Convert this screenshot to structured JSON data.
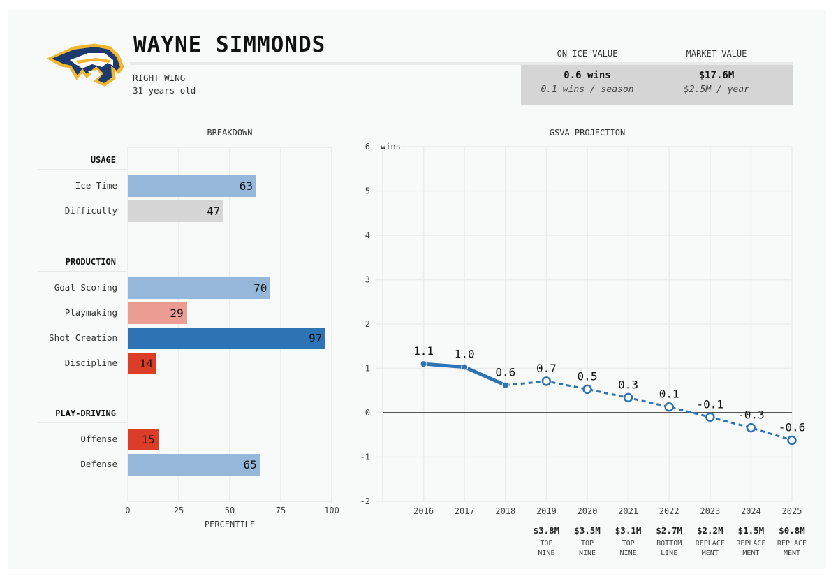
{
  "header": {
    "team_logo": "predators-sabertooth-logo",
    "player_name": "WAYNE SIMMONDS",
    "position": "RIGHT WING",
    "age": "31 years old"
  },
  "values": {
    "on_ice": {
      "label": "ON-ICE VALUE",
      "main": "0.6 wins",
      "sub": "0.1 wins / season"
    },
    "market": {
      "label": "MARKET VALUE",
      "main": "$17.6M",
      "sub": "$2.5M / year"
    }
  },
  "colors": {
    "light_blue": "#95b7da",
    "gray": "#d6d6d6",
    "dark_blue": "#2e74b5",
    "light_red": "#eb9d94",
    "red": "#dc3d27",
    "line_blue": "#2e74b5"
  },
  "chart_data": [
    {
      "type": "bar",
      "title": "BREAKDOWN",
      "xlabel": "PERCENTILE",
      "xlim": [
        0,
        100
      ],
      "xticks": [
        "0",
        "25",
        "50",
        "75",
        "100"
      ],
      "groups": [
        {
          "name": "USAGE",
          "items": [
            {
              "label": "Ice-Time",
              "value": 63,
              "color": "light_blue"
            },
            {
              "label": "Difficulty",
              "value": 47,
              "color": "gray"
            }
          ]
        },
        {
          "name": "PRODUCTION",
          "items": [
            {
              "label": "Goal Scoring",
              "value": 70,
              "color": "light_blue"
            },
            {
              "label": "Playmaking",
              "value": 29,
              "color": "light_red"
            },
            {
              "label": "Shot Creation",
              "value": 97,
              "color": "dark_blue"
            },
            {
              "label": "Discipline",
              "value": 14,
              "color": "red"
            }
          ]
        },
        {
          "name": "PLAY-DRIVING",
          "items": [
            {
              "label": "Offense",
              "value": 15,
              "color": "red"
            },
            {
              "label": "Defense",
              "value": 65,
              "color": "light_blue"
            }
          ]
        }
      ],
      "grid": true
    },
    {
      "type": "line",
      "title": "GSVA PROJECTION",
      "ylabel": "wins",
      "ylim": [
        -2,
        6
      ],
      "yticks": [
        "6",
        "5",
        "4",
        "3",
        "2",
        "1",
        "0",
        "-1",
        "-2"
      ],
      "x": [
        "2016",
        "2017",
        "2018",
        "2019",
        "2020",
        "2021",
        "2022",
        "2023",
        "2024",
        "2025"
      ],
      "values": [
        1.1,
        1.03,
        0.62,
        0.71,
        0.53,
        0.34,
        0.13,
        -0.1,
        -0.34,
        -0.62
      ],
      "labels": [
        "1.1",
        "1.0",
        "0.6",
        "0.7",
        "0.5",
        "0.3",
        "0.1",
        "-0.1",
        "-0.3",
        "-0.6"
      ],
      "actual_through": "2018",
      "series": [
        {
          "name": "actual",
          "style": "solid",
          "years": [
            "2016",
            "2017",
            "2018"
          ]
        },
        {
          "name": "projected",
          "style": "dashed",
          "years": [
            "2018",
            "2019",
            "2020",
            "2021",
            "2022",
            "2023",
            "2024",
            "2025"
          ]
        }
      ],
      "projections": [
        {
          "year": "2019",
          "salary": "$3.8M",
          "tier": [
            "TOP",
            "NINE"
          ]
        },
        {
          "year": "2020",
          "salary": "$3.5M",
          "tier": [
            "TOP",
            "NINE"
          ]
        },
        {
          "year": "2021",
          "salary": "$3.1M",
          "tier": [
            "TOP",
            "NINE"
          ]
        },
        {
          "year": "2022",
          "salary": "$2.7M",
          "tier": [
            "BOTTOM",
            "LINE"
          ]
        },
        {
          "year": "2023",
          "salary": "$2.2M",
          "tier": [
            "REPLACE",
            "MENT"
          ]
        },
        {
          "year": "2024",
          "salary": "$1.5M",
          "tier": [
            "REPLACE",
            "MENT"
          ]
        },
        {
          "year": "2025",
          "salary": "$0.8M",
          "tier": [
            "REPLACE",
            "MENT"
          ]
        }
      ],
      "zero_line": true,
      "grid": true
    }
  ]
}
